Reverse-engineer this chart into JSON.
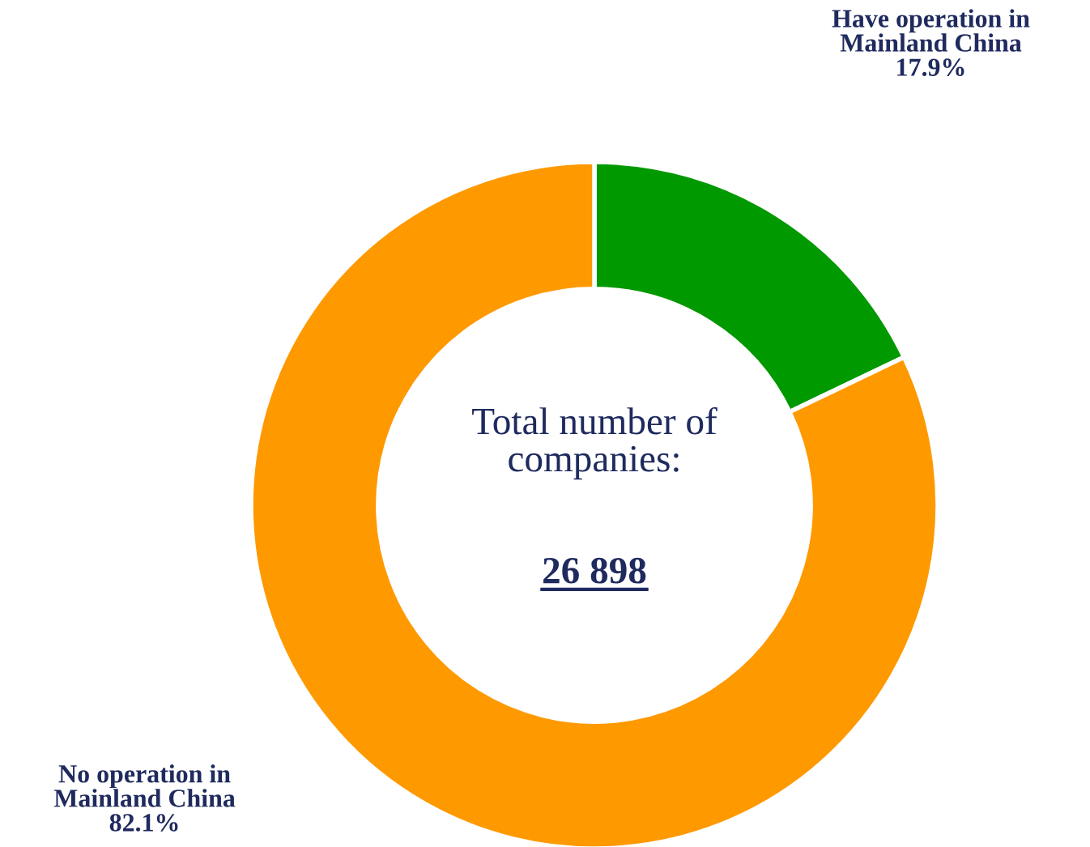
{
  "chart_data": {
    "type": "donut",
    "categories": [
      "Have operation in\nMainland China",
      "No operation in\nMainland China"
    ],
    "values": [
      17.9,
      82.1
    ],
    "colors": [
      "#009900",
      "#ff9900"
    ],
    "value_labels": [
      "17.9%",
      "82.1%"
    ],
    "annotations": [
      "Total number of\ncompanies:",
      "26 898"
    ],
    "legend": false
  }
}
